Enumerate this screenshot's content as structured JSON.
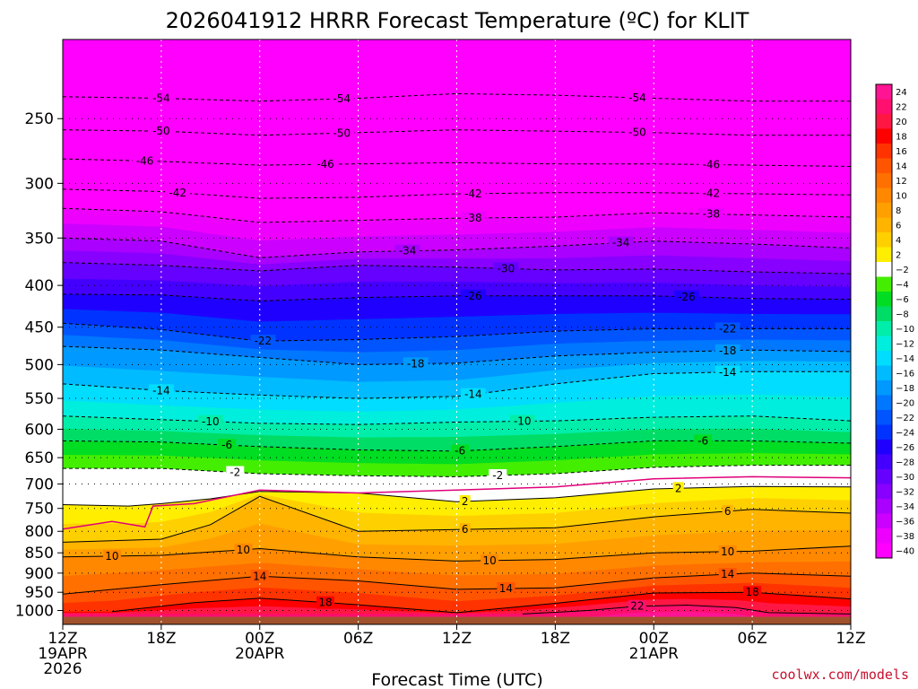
{
  "chart_data": {
    "type": "heatmap",
    "title": "2026041912 HRRR Forecast Temperature (ºC) for KLIT",
    "xlabel": "Forecast Time (UTC)",
    "credit": "coolwx.com/models",
    "x_ticks": [
      {
        "hour": 0,
        "lines": [
          "12Z",
          "19APR",
          "2026"
        ]
      },
      {
        "hour": 6,
        "lines": [
          "18Z"
        ]
      },
      {
        "hour": 12,
        "lines": [
          "00Z",
          "20APR"
        ]
      },
      {
        "hour": 18,
        "lines": [
          "06Z"
        ]
      },
      {
        "hour": 24,
        "lines": [
          "12Z"
        ]
      },
      {
        "hour": 30,
        "lines": [
          "18Z"
        ]
      },
      {
        "hour": 36,
        "lines": [
          "00Z",
          "21APR"
        ]
      },
      {
        "hour": 42,
        "lines": [
          "06Z"
        ]
      },
      {
        "hour": 48,
        "lines": [
          "12Z"
        ]
      }
    ],
    "xlim": [
      0,
      48
    ],
    "y_ticks": [
      250,
      300,
      350,
      400,
      450,
      500,
      550,
      600,
      650,
      700,
      750,
      800,
      850,
      900,
      950,
      1000
    ],
    "ylim_hpa": [
      1040,
      200
    ],
    "colorbar": {
      "labels": [
        24,
        22,
        20,
        18,
        16,
        14,
        12,
        10,
        8,
        6,
        4,
        2,
        -2,
        -4,
        -6,
        -8,
        -10,
        -12,
        -14,
        -16,
        -18,
        -20,
        -22,
        -24,
        -26,
        -28,
        -30,
        -32,
        -34,
        -36,
        -38,
        -40
      ],
      "colors": [
        "#ff1493",
        "#ff0f6e",
        "#ff1744",
        "#ff0000",
        "#ff3300",
        "#ff5500",
        "#ff7000",
        "#ff8800",
        "#ffa000",
        "#ffb400",
        "#ffd000",
        "#ffee00",
        "#ffffff",
        "#44ee00",
        "#00dd22",
        "#00dd66",
        "#00eeaa",
        "#00eedd",
        "#00ddff",
        "#00bbff",
        "#0099ff",
        "#0077ff",
        "#0055ff",
        "#0033ff",
        "#1f00ff",
        "#4400ff",
        "#6600ff",
        "#8800ff",
        "#aa00ff",
        "#cc00ff",
        "#ee00ff",
        "#ff00ff"
      ]
    },
    "isotherms": [
      {
        "label": "-54",
        "dashed": true,
        "points": [
          [
            0,
            235
          ],
          [
            6,
            236
          ],
          [
            12,
            238
          ],
          [
            18,
            236
          ],
          [
            24,
            233
          ],
          [
            30,
            234
          ],
          [
            36,
            236
          ],
          [
            42,
            238
          ],
          [
            48,
            238
          ]
        ],
        "label_hours": [
          6,
          17,
          35
        ]
      },
      {
        "label": "-50",
        "dashed": true,
        "points": [
          [
            0,
            258
          ],
          [
            6,
            259
          ],
          [
            12,
            262
          ],
          [
            18,
            260
          ],
          [
            24,
            258
          ],
          [
            30,
            259
          ],
          [
            36,
            260
          ],
          [
            42,
            262
          ],
          [
            48,
            262
          ]
        ],
        "label_hours": [
          6,
          17,
          35
        ]
      },
      {
        "label": "-46",
        "dashed": true,
        "points": [
          [
            0,
            280
          ],
          [
            6,
            282
          ],
          [
            12,
            285
          ],
          [
            18,
            284
          ],
          [
            24,
            283
          ],
          [
            30,
            284
          ],
          [
            36,
            284
          ],
          [
            42,
            285
          ],
          [
            48,
            286
          ]
        ],
        "label_hours": [
          5,
          16,
          39.5
        ]
      },
      {
        "label": "-42",
        "dashed": true,
        "points": [
          [
            0,
            305
          ],
          [
            6,
            307
          ],
          [
            12,
            313
          ],
          [
            18,
            312
          ],
          [
            24,
            309
          ],
          [
            30,
            308
          ],
          [
            36,
            308
          ],
          [
            42,
            309
          ],
          [
            48,
            310
          ]
        ],
        "label_hours": [
          7,
          25,
          39.5
        ]
      },
      {
        "label": "-38",
        "dashed": true,
        "points": [
          [
            0,
            322
          ],
          [
            6,
            325
          ],
          [
            12,
            335
          ],
          [
            18,
            333
          ],
          [
            24,
            331
          ],
          [
            30,
            330
          ],
          [
            36,
            326
          ],
          [
            42,
            328
          ],
          [
            48,
            330
          ]
        ],
        "label_hours": [
          25,
          39.5
        ]
      },
      {
        "label": "-34",
        "dashed": true,
        "points": [
          [
            0,
            350
          ],
          [
            6,
            353
          ],
          [
            12,
            370
          ],
          [
            18,
            364
          ],
          [
            24,
            362
          ],
          [
            30,
            358
          ],
          [
            36,
            353
          ],
          [
            42,
            356
          ],
          [
            48,
            360
          ]
        ],
        "label_hours": [
          21,
          34
        ]
      },
      {
        "label": "-30",
        "dashed": true,
        "points": [
          [
            0,
            375
          ],
          [
            6,
            378
          ],
          [
            12,
            384
          ],
          [
            18,
            378
          ],
          [
            24,
            380
          ],
          [
            30,
            383
          ],
          [
            36,
            382
          ],
          [
            42,
            385
          ],
          [
            48,
            387
          ]
        ],
        "label_hours": [
          27
        ]
      },
      {
        "label": "-26",
        "dashed": true,
        "points": [
          [
            0,
            410
          ],
          [
            6,
            411
          ],
          [
            12,
            418
          ],
          [
            18,
            414
          ],
          [
            24,
            412
          ],
          [
            30,
            412
          ],
          [
            36,
            412
          ],
          [
            42,
            415
          ],
          [
            48,
            416
          ]
        ],
        "label_hours": [
          25,
          38
        ]
      },
      {
        "label": "-22",
        "dashed": true,
        "points": [
          [
            0,
            445
          ],
          [
            6,
            453
          ],
          [
            12,
            468
          ],
          [
            18,
            466
          ],
          [
            24,
            462
          ],
          [
            30,
            455
          ],
          [
            36,
            452
          ],
          [
            42,
            452
          ],
          [
            48,
            452
          ]
        ],
        "label_hours": [
          12.2,
          40.5
        ]
      },
      {
        "label": "-18",
        "dashed": true,
        "points": [
          [
            0,
            475
          ],
          [
            6,
            480
          ],
          [
            12,
            490
          ],
          [
            18,
            500
          ],
          [
            24,
            498
          ],
          [
            30,
            488
          ],
          [
            36,
            483
          ],
          [
            42,
            480
          ],
          [
            48,
            482
          ]
        ],
        "label_hours": [
          21.5,
          40.5
        ]
      },
      {
        "label": "-14",
        "dashed": true,
        "points": [
          [
            0,
            528
          ],
          [
            6,
            538
          ],
          [
            12,
            545
          ],
          [
            18,
            550
          ],
          [
            24,
            547
          ],
          [
            30,
            528
          ],
          [
            36,
            513
          ],
          [
            42,
            510
          ],
          [
            48,
            510
          ]
        ],
        "label_hours": [
          6,
          25,
          40.5
        ]
      },
      {
        "label": "-10",
        "dashed": true,
        "points": [
          [
            0,
            578
          ],
          [
            6,
            584
          ],
          [
            12,
            590
          ],
          [
            18,
            592
          ],
          [
            24,
            588
          ],
          [
            30,
            586
          ],
          [
            36,
            580
          ],
          [
            42,
            578
          ],
          [
            48,
            586
          ]
        ],
        "label_hours": [
          9,
          28
        ]
      },
      {
        "label": "-6",
        "dashed": true,
        "points": [
          [
            0,
            620
          ],
          [
            6,
            622
          ],
          [
            12,
            630
          ],
          [
            18,
            636
          ],
          [
            24,
            638
          ],
          [
            30,
            630
          ],
          [
            36,
            620
          ],
          [
            42,
            620
          ],
          [
            48,
            624
          ]
        ],
        "label_hours": [
          10,
          24.2,
          39
        ]
      },
      {
        "label": "-2",
        "dashed": true,
        "points": [
          [
            0,
            670
          ],
          [
            6,
            670
          ],
          [
            12,
            680
          ],
          [
            18,
            684
          ],
          [
            24,
            686
          ],
          [
            30,
            680
          ],
          [
            36,
            668
          ],
          [
            42,
            664
          ],
          [
            48,
            664
          ]
        ],
        "label_hours": [
          10.5,
          26.5
        ]
      },
      {
        "label": "2",
        "dashed": false,
        "points": [
          [
            0,
            742
          ],
          [
            4,
            745
          ],
          [
            6,
            740
          ],
          [
            9,
            730
          ],
          [
            12,
            715
          ],
          [
            18,
            718
          ],
          [
            24,
            736
          ],
          [
            30,
            728
          ],
          [
            36,
            710
          ],
          [
            42,
            705
          ],
          [
            48,
            706
          ]
        ],
        "label_hours": [
          24.5,
          37.5
        ]
      },
      {
        "label": "6",
        "dashed": false,
        "points": [
          [
            0,
            825
          ],
          [
            6,
            818
          ],
          [
            9,
            785
          ],
          [
            12,
            725
          ],
          [
            18,
            800
          ],
          [
            24,
            796
          ],
          [
            30,
            792
          ],
          [
            36,
            768
          ],
          [
            42,
            752
          ],
          [
            48,
            760
          ]
        ],
        "label_hours": [
          24.5,
          40.5
        ]
      },
      {
        "label": "10",
        "dashed": false,
        "points": [
          [
            0,
            860
          ],
          [
            6,
            856
          ],
          [
            12,
            840
          ],
          [
            18,
            860
          ],
          [
            24,
            870
          ],
          [
            30,
            866
          ],
          [
            36,
            850
          ],
          [
            42,
            846
          ],
          [
            48,
            834
          ]
        ],
        "label_hours": [
          3,
          11,
          26,
          40.5
        ]
      },
      {
        "label": "14",
        "dashed": false,
        "points": [
          [
            0,
            955
          ],
          [
            6,
            930
          ],
          [
            12,
            908
          ],
          [
            18,
            920
          ],
          [
            24,
            942
          ],
          [
            30,
            938
          ],
          [
            36,
            912
          ],
          [
            42,
            900
          ],
          [
            48,
            908
          ]
        ],
        "label_hours": [
          12,
          27,
          40.5
        ]
      },
      {
        "label": "18",
        "dashed": false,
        "points": [
          [
            3,
            1003
          ],
          [
            8,
            978
          ],
          [
            12,
            966
          ],
          [
            18,
            984
          ],
          [
            24,
            1006
          ],
          [
            30,
            980
          ],
          [
            36,
            952
          ],
          [
            42,
            950
          ],
          [
            48,
            968
          ]
        ],
        "label_hours": [
          16,
          42
        ]
      },
      {
        "label": "22",
        "dashed": false,
        "points": [
          [
            28,
            1010
          ],
          [
            32,
            1000
          ],
          [
            35,
            988
          ],
          [
            38,
            985
          ],
          [
            41,
            992
          ],
          [
            43,
            1006
          ],
          [
            48,
            1010
          ]
        ],
        "label_hours": [
          35
        ]
      }
    ],
    "freezing_line": [
      [
        0,
        795
      ],
      [
        3,
        778
      ],
      [
        5,
        790
      ],
      [
        5.5,
        745
      ],
      [
        8,
        740
      ],
      [
        12,
        712
      ],
      [
        18,
        718
      ],
      [
        24,
        712
      ],
      [
        30,
        706
      ],
      [
        36,
        690
      ],
      [
        42,
        686
      ],
      [
        48,
        688
      ]
    ],
    "surface_line": [
      [
        0,
        1020
      ],
      [
        48,
        1020
      ]
    ]
  }
}
